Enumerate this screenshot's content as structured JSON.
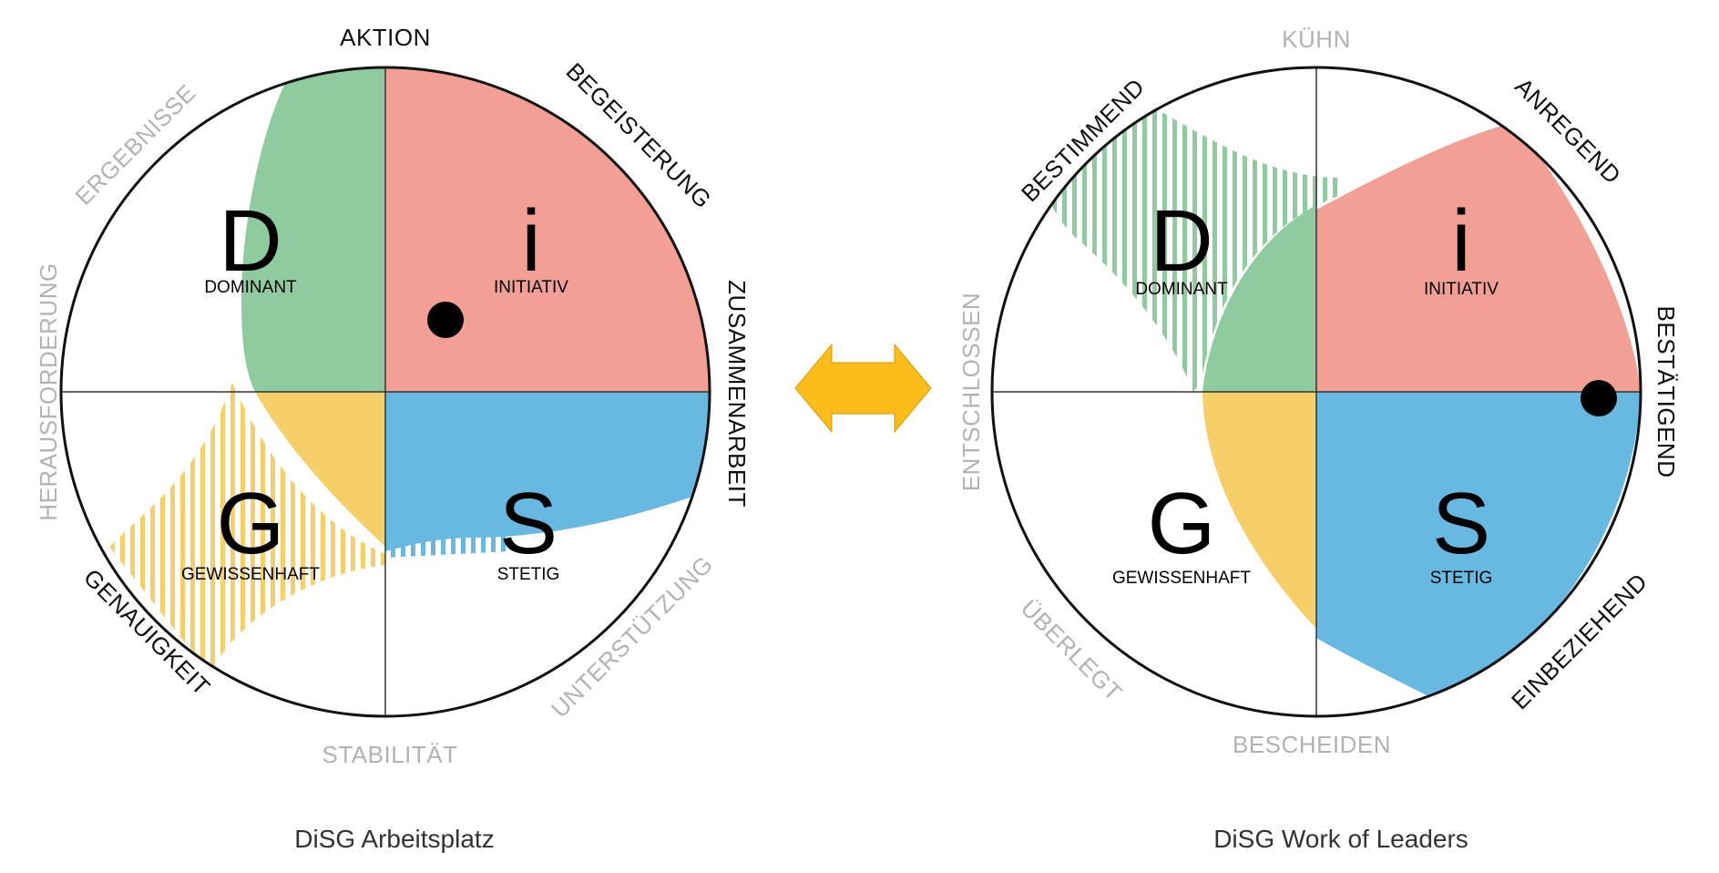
{
  "colors": {
    "d_green": "#8fcb9f",
    "i_red": "#f2a095",
    "s_blue": "#67b9e1",
    "g_yellow": "#f6cf69",
    "arrow": "#fbbd1a"
  },
  "left_model": {
    "caption": "DiSG Arbeitsplatz",
    "quadrants": {
      "D": {
        "letter": "D",
        "name": "DOMINANT"
      },
      "i": {
        "letter": "i",
        "name": "INITIATIV"
      },
      "S": {
        "letter": "S",
        "name": "STETIG"
      },
      "G": {
        "letter": "G",
        "name": "GEWISSENHAFT"
      }
    },
    "ring_labels_dark": [
      "AKTION",
      "BEGEISTERUNG",
      "ZUSAMMENARBEIT",
      "GENAUIGKEIT"
    ],
    "ring_labels_light": [
      "ERGEBNISSE",
      "HERAUSFORDERUNG",
      "UNTERSTÜTZUNG",
      "STABILITÄT"
    ]
  },
  "right_model": {
    "caption": "DiSG Work of Leaders",
    "quadrants": {
      "D": {
        "letter": "D",
        "name": "DOMINANT"
      },
      "i": {
        "letter": "i",
        "name": "INITIATIV"
      },
      "S": {
        "letter": "S",
        "name": "STETIG"
      },
      "G": {
        "letter": "G",
        "name": "GEWISSENHAFT"
      }
    },
    "ring_labels_dark": [
      "BESTIMMEND",
      "ANREGEND",
      "BESTÄTIGEND",
      "EINBEZIEHEND"
    ],
    "ring_labels_light": [
      "KÜHN",
      "ENTSCHLOSSEN",
      "ÜBERLEGT",
      "BESCHEIDEN"
    ]
  },
  "connector": {
    "icon": "double-arrow-icon"
  }
}
